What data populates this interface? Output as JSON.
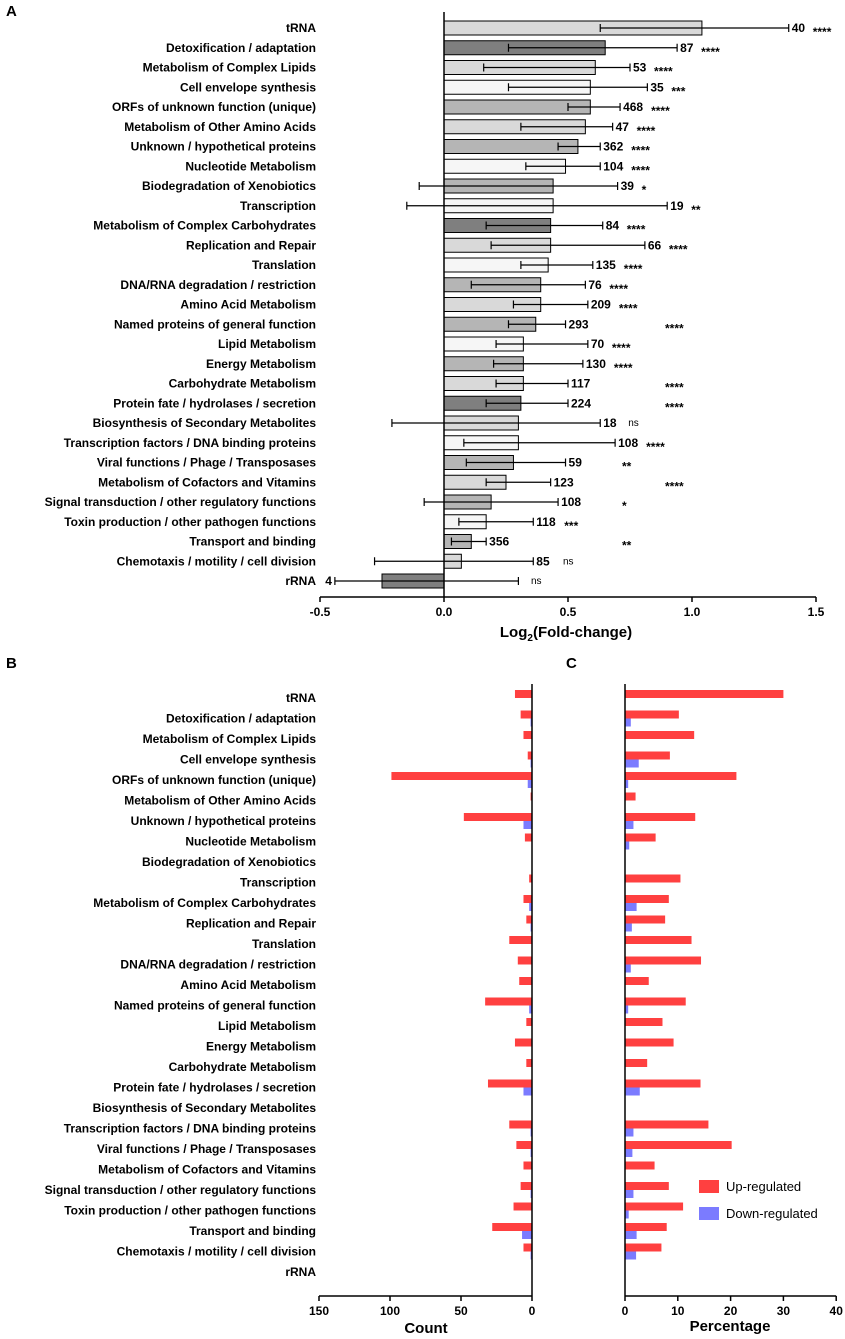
{
  "colors": {
    "up": "#ff4040",
    "down": "#7b7bff",
    "shade_dark": "#7f7f7f",
    "shade_mid": "#b5b5b5",
    "shade_light": "#d9d9d9",
    "shade_white": "#f6f6f6"
  },
  "chart_data": [
    {
      "panel": "A",
      "type": "bar",
      "orientation": "horizontal",
      "xlabel": "Log",
      "xlabel_sub": "2",
      "xlabel_rest": "(Fold-change)",
      "xlim": [
        -0.5,
        1.5
      ],
      "xticks": [
        "-0.5",
        "0.0",
        "0.5",
        "1.0",
        "1.5"
      ],
      "xtick_values": [
        -0.5,
        0,
        0.5,
        1.0,
        1.5
      ],
      "categories": [
        "tRNA",
        "Detoxification / adaptation",
        "Metabolism of Complex Lipids",
        "Cell envelope synthesis",
        "ORFs of unknown function (unique)",
        "Metabolism of Other Amino Acids",
        "Unknown / hypothetical proteins",
        "Nucleotide Metabolism",
        "Biodegradation of Xenobiotics",
        "Transcription",
        "Metabolism of Complex Carbohydrates",
        "Replication and Repair",
        "Translation",
        "DNA/RNA degradation / restriction",
        "Amino Acid Metabolism",
        "Named proteins of general function",
        "Lipid Metabolism",
        "Energy Metabolism",
        "Carbohydrate Metabolism",
        "Protein fate / hydrolases / secretion",
        "Biosynthesis of Secondary Metabolites",
        "Transcription factors / DNA binding proteins",
        "Viral functions / Phage / Transposases",
        "Metabolism of Cofactors and Vitamins",
        "Signal transduction / other regulatory functions",
        "Toxin production / other pathogen functions",
        "Transport and binding",
        "Chemotaxis / motility / cell division",
        "rRNA"
      ],
      "values": [
        1.04,
        0.65,
        0.61,
        0.59,
        0.59,
        0.57,
        0.54,
        0.49,
        0.44,
        0.44,
        0.43,
        0.43,
        0.42,
        0.39,
        0.39,
        0.37,
        0.32,
        0.32,
        0.32,
        0.31,
        0.3,
        0.3,
        0.28,
        0.25,
        0.19,
        0.17,
        0.11,
        0.07,
        -0.25
      ],
      "err_low": [
        0.63,
        0.26,
        0.16,
        0.26,
        0.5,
        0.31,
        0.46,
        0.33,
        -0.1,
        -0.15,
        0.17,
        0.19,
        0.31,
        0.11,
        0.28,
        0.26,
        0.21,
        0.2,
        0.21,
        0.17,
        -0.21,
        0.08,
        0.09,
        0.17,
        -0.08,
        0.06,
        0.03,
        -0.28,
        -0.44
      ],
      "err_high": [
        1.39,
        0.94,
        0.75,
        0.82,
        0.71,
        0.68,
        0.63,
        0.63,
        0.7,
        0.9,
        0.64,
        0.81,
        0.6,
        0.57,
        0.58,
        0.49,
        0.58,
        0.56,
        0.5,
        0.5,
        0.63,
        0.69,
        0.49,
        0.43,
        0.46,
        0.36,
        0.17,
        0.36,
        0.3
      ],
      "shades": [
        "light",
        "dark",
        "light",
        "white",
        "mid",
        "light",
        "mid",
        "white",
        "mid",
        "white",
        "dark",
        "light",
        "white",
        "mid",
        "light",
        "mid",
        "white",
        "mid",
        "light",
        "dark",
        "light",
        "white",
        "mid",
        "light",
        "mid",
        "white",
        "mid",
        "light",
        "dark"
      ],
      "counts": [
        "40",
        "87",
        "53",
        "35",
        "468",
        "47",
        "362",
        "104",
        "39",
        "19",
        "84",
        "66",
        "135",
        "76",
        "209",
        "293",
        "70",
        "130",
        "117",
        "224",
        "18",
        "108",
        "59",
        "123",
        "108",
        "118",
        "356",
        "85",
        "4"
      ],
      "significance": [
        "****",
        "****",
        "****",
        "***",
        "****",
        "****",
        "****",
        "****",
        "*",
        "**",
        "****",
        "****",
        "****",
        "****",
        "****",
        "****",
        "****",
        "****",
        "****",
        "****",
        "ns",
        "****",
        "**",
        "****",
        "*",
        "***",
        "**",
        "ns",
        "ns"
      ]
    },
    {
      "panel": "B",
      "type": "bar",
      "orientation": "horizontal",
      "xlabel": "Count",
      "xlim": [
        150,
        0
      ],
      "xticks": [
        "150",
        "100",
        "50",
        "0"
      ],
      "xtick_values": [
        150,
        100,
        50,
        0
      ],
      "series": [
        {
          "name": "Up-regulated",
          "values": [
            12,
            8,
            6,
            3,
            99,
            1,
            48,
            5,
            0,
            2,
            6,
            4,
            16,
            10,
            9,
            33,
            4,
            12,
            4,
            31,
            0,
            16,
            11,
            6,
            8,
            13,
            28,
            6,
            0
          ]
        },
        {
          "name": "Down-regulated",
          "values": [
            0,
            1,
            0,
            1,
            3,
            0,
            6,
            0,
            0,
            0,
            2,
            1,
            0,
            0,
            0,
            2,
            0,
            0,
            0,
            6,
            0,
            1,
            1,
            0,
            1,
            0,
            7,
            1,
            0
          ]
        }
      ]
    },
    {
      "panel": "C",
      "type": "bar",
      "orientation": "horizontal",
      "xlabel": "Percentage",
      "xlim": [
        0,
        40
      ],
      "xticks": [
        "0",
        "10",
        "20",
        "30",
        "40"
      ],
      "xtick_values": [
        0,
        10,
        20,
        30,
        40
      ],
      "series": [
        {
          "name": "Up-regulated",
          "values": [
            30,
            10.2,
            13.1,
            8.5,
            21.1,
            2.0,
            13.3,
            5.8,
            0,
            10.5,
            8.3,
            7.6,
            12.6,
            14.4,
            4.5,
            11.5,
            7.1,
            9.2,
            4.2,
            14.3,
            0,
            15.8,
            20.2,
            5.6,
            8.3,
            11.0,
            7.9,
            6.9,
            0
          ]
        },
        {
          "name": "Down-regulated",
          "values": [
            0,
            1.1,
            0,
            2.6,
            0.6,
            0,
            1.6,
            0.8,
            0,
            0,
            2.2,
            1.3,
            0,
            1.1,
            0,
            0.6,
            0,
            0,
            0,
            2.8,
            0,
            1.6,
            1.4,
            0,
            1.6,
            0.7,
            2.2,
            2.1,
            0
          ]
        }
      ]
    }
  ],
  "panels": {
    "a": "A",
    "b": "B",
    "c": "C"
  },
  "legend": {
    "up": "Up-regulated",
    "down": "Down-regulated"
  }
}
